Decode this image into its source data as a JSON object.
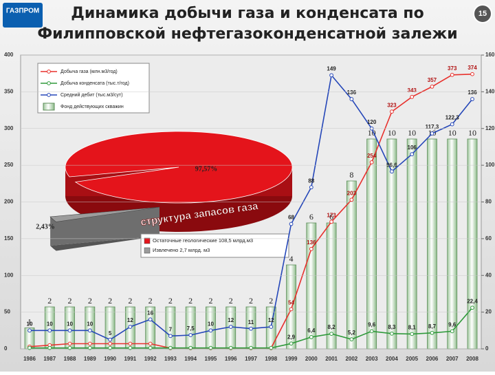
{
  "header": {
    "logo": "ГАЗПРОМ",
    "title_lines": [
      "Динамика добычи газа и конденсата по",
      "Филипповской нефтегазоконденсатной залежи"
    ],
    "page_number": "15"
  },
  "chart_data": [
    {
      "type": "bar_line",
      "categories": [
        "1986",
        "1987",
        "1988",
        "1989",
        "1990",
        "1991",
        "1992",
        "1993",
        "1994",
        "1995",
        "1996",
        "1997",
        "1998",
        "1999",
        "2000",
        "2001",
        "2002",
        "2003",
        "2004",
        "2005",
        "2006",
        "2007",
        "2008"
      ],
      "ylim": [
        0,
        400
      ],
      "yticks": [
        0,
        50,
        100,
        150,
        200,
        250,
        300,
        350,
        400
      ],
      "y2lim": [
        0,
        160
      ],
      "y2ticks": [
        0,
        20,
        40,
        60,
        80,
        100,
        120,
        140,
        160
      ],
      "y3lim": [
        0,
        14
      ],
      "series": [
        {
          "name": "Добыча газа (млн.м3/год)",
          "color": "#e8302c",
          "kind": "line",
          "axis": "y",
          "values": [
            3,
            5,
            7,
            7,
            7,
            7,
            7,
            1,
            1,
            1,
            1,
            1,
            1,
            54,
            136,
            173,
            203,
            254,
            323,
            343,
            357,
            373,
            374
          ],
          "value_labels": [
            null,
            null,
            null,
            null,
            null,
            null,
            null,
            null,
            null,
            null,
            null,
            null,
            null,
            "54",
            "136",
            "173",
            "203",
            "254",
            "323",
            "343",
            "357",
            "373",
            "374"
          ]
        },
        {
          "name": "Добыча конденсата (тыс.т/год)",
          "color": "#2e9a3a",
          "kind": "line",
          "axis": "y2",
          "values": [
            0.5,
            0.5,
            0.5,
            0.5,
            0.5,
            0.5,
            0.5,
            0.5,
            0.5,
            0.5,
            0.5,
            0.5,
            0.5,
            2.9,
            6.4,
            8.2,
            5.2,
            9.6,
            8.3,
            8.1,
            8.7,
            9.6,
            22.4
          ],
          "value_labels": [
            null,
            null,
            null,
            null,
            null,
            null,
            null,
            null,
            null,
            null,
            null,
            null,
            null,
            "2,9",
            "6,4",
            "8,2",
            "5,2",
            "9,6",
            "8,3",
            "8,1",
            "8,7",
            "9,6",
            "22,4"
          ]
        },
        {
          "name": "Средний дебит (тыс.м3/сут)",
          "color": "#2446b8",
          "kind": "line",
          "axis": "y2",
          "values": [
            10,
            10,
            10,
            10,
            5,
            12,
            16,
            7,
            7.5,
            10,
            12,
            11,
            12,
            68,
            88,
            149,
            136,
            120,
            96.6,
            106,
            117.3,
            122.3,
            136
          ],
          "value_labels": [
            "10",
            "10",
            "10",
            "10",
            "5",
            "12",
            "16",
            "7",
            "7,5",
            "10",
            "12",
            "11",
            "12",
            "68",
            "88",
            "149",
            "136",
            "120",
            "96,6",
            "106",
            "117,3",
            "122,3",
            "136"
          ]
        },
        {
          "name": "Фонд действующих скважин",
          "color": "#dfeedd",
          "kind": "bar",
          "axis": "y3",
          "values": [
            1,
            2,
            2,
            2,
            2,
            2,
            2,
            2,
            2,
            2,
            2,
            2,
            2,
            4,
            6,
            6,
            8,
            10,
            10,
            10,
            10,
            10,
            10
          ]
        }
      ]
    },
    {
      "type": "pie",
      "title": "структура запасов газа",
      "categories": [
        "Остаточные геологические 108,5 млрд.м3",
        "Извлечено 2,7 млрд. м3"
      ],
      "values": [
        97.57,
        2.43
      ],
      "value_labels": [
        "97,57%",
        "2,43%"
      ],
      "colors": [
        "#e4141b",
        "#9c9c9c"
      ]
    }
  ]
}
